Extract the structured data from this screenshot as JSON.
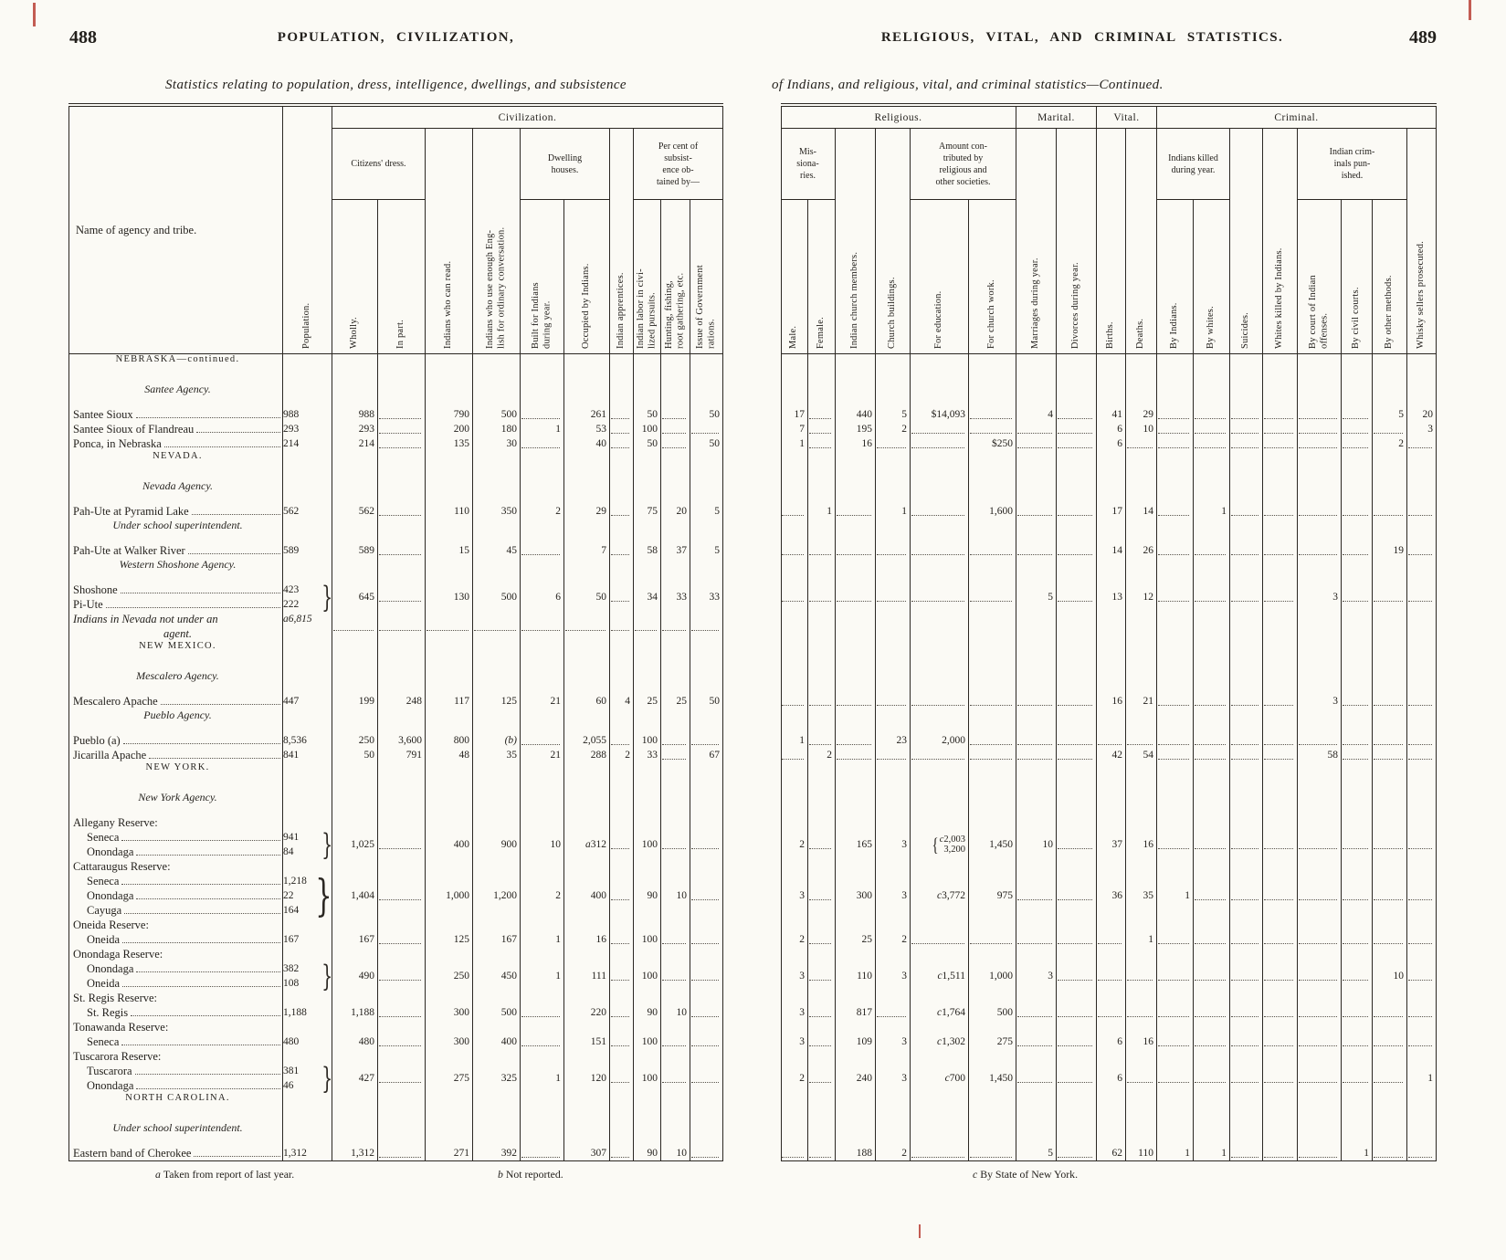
{
  "colors": {
    "ink": "#2b2722",
    "paper": "#fbfaf5",
    "scan_mark": "#b5342a"
  },
  "pages": {
    "left": {
      "number": "488",
      "running_head": "POPULATION, CIVILIZATION,",
      "subtitle": "Statistics relating to population, dress, intelligence, dwellings, and subsistence"
    },
    "right": {
      "number": "489",
      "running_head": "RELIGIOUS, VITAL, AND CRIMINAL STATISTICS.",
      "subtitle": "of Indians, and religious, vital, and criminal statistics—Continued."
    }
  },
  "left_header": {
    "name_col": "Name of agency and tribe.",
    "population": "Population.",
    "civilization": "Civilization.",
    "citizens_dress": "Citizens' dress.",
    "wholly": "Wholly.",
    "in_part": "In part.",
    "read": "Indians who can read.",
    "english": "Indians who use enough Eng-\nlish for ordinary conversation.",
    "dwelling": "Dwelling\nhouses.",
    "built": "Built for Indians\nduring year.",
    "occupied": "Occupied by Indians.",
    "apprentices": "Indian apprentices.",
    "subsistence": "Per cent of\nsubsist-\nence ob-\ntained by—",
    "labor": "Indian labor in civi-\nlized pursuits.",
    "hunting": "Hunting, fishing,\nroot gathering, etc.",
    "rations": "Issue of Government\nrations."
  },
  "right_header": {
    "religious": "Religious.",
    "marital": "Marital.",
    "vital": "Vital.",
    "criminal": "Criminal.",
    "missionaries": "Mis-\nsiona-\nries.",
    "male": "Male.",
    "female": "Female.",
    "members": "Indian church members.",
    "buildings": "Church buildings.",
    "amount": "Amount con-\ntributed by\nreligious and\nother societies.",
    "education": "For education.",
    "church_work": "For church work.",
    "marriages": "Marriages during year.",
    "divorces": "Divorces during year.",
    "births": "Births.",
    "deaths": "Deaths.",
    "killed": "Indians killed\nduring year.",
    "by_indians": "By Indians.",
    "by_whites": "By whites.",
    "suicides": "Suicides.",
    "whites_killed": "Whites killed by Indians.",
    "criminals": "Indian crim-\ninals pun-\nished.",
    "by_court": "By court of Indian\noffenses.",
    "by_civil": "By civil courts.",
    "by_other": "By other methods.",
    "whisky": "Whisky sellers prosecuted."
  },
  "footnotes": {
    "a": {
      "marker": "a",
      "text": "Taken from report of last year."
    },
    "b": {
      "marker": "b",
      "text": "Not reported."
    },
    "c": {
      "marker": "c",
      "text": "By State of New York."
    }
  },
  "rows": [
    {
      "type": "section",
      "text": "NEBRASKA—continued."
    },
    {
      "type": "agency",
      "text": "Santee Agency."
    },
    {
      "type": "data",
      "lines": [
        {
          "name": "Santee Sioux",
          "pop": "988"
        }
      ],
      "left": [
        "988",
        "",
        "790",
        "500",
        "",
        "261",
        "",
        "50",
        "",
        "50"
      ],
      "right": [
        "17",
        "",
        "440",
        "5",
        "$14,093",
        "",
        "4",
        "",
        "41",
        "29",
        "",
        "",
        "",
        "",
        "",
        "",
        "5",
        "20"
      ]
    },
    {
      "type": "data",
      "lines": [
        {
          "name": "Santee Sioux of Flandreau",
          "pop": "293"
        }
      ],
      "left": [
        "293",
        "",
        "200",
        "180",
        "1",
        "53",
        "",
        "100",
        "",
        ""
      ],
      "right": [
        "7",
        "",
        "195",
        "2",
        "",
        "",
        "",
        "",
        "6",
        "10",
        "",
        "",
        "",
        "",
        "",
        "",
        "",
        "3"
      ]
    },
    {
      "type": "data",
      "lines": [
        {
          "name": "Ponca, in Nebraska",
          "pop": "214"
        }
      ],
      "left": [
        "214",
        "",
        "135",
        "30",
        "",
        "40",
        "",
        "50",
        "",
        "50"
      ],
      "right": [
        "1",
        "",
        "16",
        "",
        "",
        "$250",
        "",
        "",
        "6",
        "",
        "",
        "",
        "",
        "",
        "",
        "",
        "2",
        ""
      ]
    },
    {
      "type": "section",
      "text": "NEVADA."
    },
    {
      "type": "agency",
      "text": "Nevada Agency."
    },
    {
      "type": "data",
      "lines": [
        {
          "name": "Pah-Ute at Pyramid Lake",
          "pop": "562"
        }
      ],
      "left": [
        "562",
        "",
        "110",
        "350",
        "2",
        "29",
        "",
        "75",
        "20",
        "5"
      ],
      "right": [
        "",
        "1",
        "",
        "1",
        "",
        "1,600",
        "",
        "",
        "17",
        "14",
        "",
        "1",
        "",
        "",
        "",
        "",
        "",
        ""
      ]
    },
    {
      "type": "agency",
      "text": "Under school superintendent."
    },
    {
      "type": "data",
      "lines": [
        {
          "name": "Pah-Ute at Walker River",
          "pop": "589"
        }
      ],
      "left": [
        "589",
        "",
        "15",
        "45",
        "",
        "7",
        "",
        "58",
        "37",
        "5"
      ],
      "right": [
        "",
        "",
        "",
        "",
        "",
        "",
        "",
        "",
        "14",
        "26",
        "",
        "",
        "",
        "",
        "",
        "",
        "19",
        ""
      ]
    },
    {
      "type": "agency",
      "text": "Western Shoshone Agency."
    },
    {
      "type": "data",
      "brace": 2,
      "lines": [
        {
          "name": "Shoshone",
          "pop": "423"
        },
        {
          "name": "Pi-Ute",
          "pop": "222"
        }
      ],
      "left": [
        "645",
        "",
        "130",
        "500",
        "6",
        "50",
        "",
        "34",
        "33",
        "33"
      ],
      "right": [
        "",
        "",
        "",
        "",
        "",
        "",
        "5",
        "",
        "13",
        "12",
        "",
        "",
        "",
        "",
        "3",
        "",
        "",
        ""
      ]
    },
    {
      "type": "data",
      "italic": true,
      "noleader": true,
      "lines": [
        {
          "name": "Indians in Nevada not under an",
          "pop": "a6,815"
        },
        {
          "name": "agent.",
          "center": true
        }
      ],
      "left": [
        "",
        "",
        "",
        "",
        "",
        "",
        "",
        "",
        "",
        ""
      ],
      "right": [
        null,
        null,
        null,
        null,
        null,
        null,
        null,
        null,
        null,
        null,
        null,
        null,
        null,
        null,
        null,
        null,
        null,
        null
      ]
    },
    {
      "type": "section",
      "text": "NEW MEXICO."
    },
    {
      "type": "agency",
      "text": "Mescalero Agency."
    },
    {
      "type": "data",
      "lines": [
        {
          "name": "Mescalero Apache",
          "pop": "447"
        }
      ],
      "left": [
        "199",
        "248",
        "117",
        "125",
        "21",
        "60",
        "4",
        "25",
        "25",
        "50"
      ],
      "right": [
        "",
        "",
        "",
        "",
        "",
        "",
        "",
        "",
        "16",
        "21",
        "",
        "",
        "",
        "",
        "3",
        "",
        "",
        ""
      ]
    },
    {
      "type": "agency",
      "text": "Pueblo Agency."
    },
    {
      "type": "data",
      "lines": [
        {
          "name": "Pueblo (a)",
          "pop": "8,536"
        }
      ],
      "left": [
        "250",
        "3,600",
        "800",
        "(b)",
        "",
        "2,055",
        "",
        "100",
        "",
        ""
      ],
      "right": [
        "1",
        "",
        "",
        "23",
        "2,000",
        "",
        "",
        "",
        "",
        "",
        "",
        "",
        "",
        "",
        "",
        "",
        "",
        ""
      ]
    },
    {
      "type": "data",
      "lines": [
        {
          "name": "Jicarilla Apache",
          "pop": "841"
        }
      ],
      "left": [
        "50",
        "791",
        "48",
        "35",
        "21",
        "288",
        "2",
        "33",
        "",
        "67"
      ],
      "right": [
        "",
        "2",
        "",
        "",
        "",
        "",
        "",
        "",
        "42",
        "54",
        "",
        "",
        "",
        "",
        "58",
        "",
        "",
        ""
      ]
    },
    {
      "type": "section",
      "text": "NEW YORK."
    },
    {
      "type": "agency",
      "text": "New York Agency."
    },
    {
      "type": "data",
      "label": "Allegany Reserve:",
      "brace": 2,
      "lines": [
        {
          "name": "Seneca",
          "pop": "941",
          "indent": true
        },
        {
          "name": "Onondaga",
          "pop": "84",
          "indent": true
        }
      ],
      "left": [
        "1,025",
        "",
        "400",
        "900",
        "10",
        "a312",
        "",
        "100",
        "",
        ""
      ],
      "right": [
        "2",
        "",
        "165",
        "3",
        "c2,003|3,200",
        "1,450",
        "10",
        "",
        "37",
        "16",
        "",
        "",
        "",
        "",
        "",
        "",
        "",
        ""
      ]
    },
    {
      "type": "data",
      "label": "Cattaraugus Reserve:",
      "brace": 3,
      "lines": [
        {
          "name": "Seneca",
          "pop": "1,218",
          "indent": true
        },
        {
          "name": "Onondaga",
          "pop": "22",
          "indent": true
        },
        {
          "name": "Cayuga",
          "pop": "164",
          "indent": true
        }
      ],
      "left": [
        "1,404",
        "",
        "1,000",
        "1,200",
        "2",
        "400",
        "",
        "90",
        "10",
        ""
      ],
      "right": [
        "3",
        "",
        "300",
        "3",
        "c3,772",
        "975",
        "",
        "",
        "36",
        "35",
        "1",
        "",
        "",
        "",
        "",
        "",
        "",
        ""
      ]
    },
    {
      "type": "data",
      "label": "Oneida Reserve:",
      "lines": [
        {
          "name": "Oneida",
          "pop": "167",
          "indent": true
        }
      ],
      "left": [
        "167",
        "",
        "125",
        "167",
        "1",
        "16",
        "",
        "100",
        "",
        ""
      ],
      "right": [
        "2",
        "",
        "25",
        "2",
        "",
        "",
        "",
        "",
        "",
        "1",
        "",
        "",
        "",
        "",
        "",
        "",
        "",
        ""
      ]
    },
    {
      "type": "data",
      "label": "Onondaga Reserve:",
      "brace": 2,
      "lines": [
        {
          "name": "Onondaga",
          "pop": "382",
          "indent": true
        },
        {
          "name": "Oneida",
          "pop": "108",
          "indent": true
        }
      ],
      "left": [
        "490",
        "",
        "250",
        "450",
        "1",
        "111",
        "",
        "100",
        "",
        ""
      ],
      "right": [
        "3",
        "",
        "110",
        "3",
        "c1,511",
        "1,000",
        "3",
        "",
        "",
        "",
        "",
        "",
        "",
        "",
        "",
        "",
        "10",
        ""
      ]
    },
    {
      "type": "data",
      "label": "St. Regis Reserve:",
      "lines": [
        {
          "name": "St. Regis",
          "pop": "1,188",
          "indent": true
        }
      ],
      "left": [
        "1,188",
        "",
        "300",
        "500",
        "",
        "220",
        "",
        "90",
        "10",
        ""
      ],
      "right": [
        "3",
        "",
        "817",
        "",
        "c1,764",
        "500",
        "",
        "",
        "",
        "",
        "",
        "",
        "",
        "",
        "",
        "",
        "",
        ""
      ]
    },
    {
      "type": "data",
      "label": "Tonawanda Reserve:",
      "lines": [
        {
          "name": "Seneca",
          "pop": "480",
          "indent": true
        }
      ],
      "left": [
        "480",
        "",
        "300",
        "400",
        "",
        "151",
        "",
        "100",
        "",
        ""
      ],
      "right": [
        "3",
        "",
        "109",
        "3",
        "c1,302",
        "275",
        "",
        "",
        "6",
        "16",
        "",
        "",
        "",
        "",
        "",
        "",
        "",
        ""
      ]
    },
    {
      "type": "data",
      "label": "Tuscarora Reserve:",
      "brace": 2,
      "lines": [
        {
          "name": "Tuscarora",
          "pop": "381",
          "indent": true
        },
        {
          "name": "Onondaga",
          "pop": "46",
          "indent": true
        }
      ],
      "left": [
        "427",
        "",
        "275",
        "325",
        "1",
        "120",
        "",
        "100",
        "",
        ""
      ],
      "right": [
        "2",
        "",
        "240",
        "3",
        "c700",
        "1,450",
        "",
        "",
        "6",
        "",
        "",
        "",
        "",
        "",
        "",
        "",
        "",
        "1"
      ]
    },
    {
      "type": "section",
      "text": "NORTH CAROLINA."
    },
    {
      "type": "agency",
      "text": "Under school superintendent."
    },
    {
      "type": "data",
      "lines": [
        {
          "name": "Eastern band of Cherokee",
          "pop": "1,312"
        }
      ],
      "left": [
        "1,312",
        "",
        "271",
        "392",
        "",
        "307",
        "",
        "90",
        "10",
        ""
      ],
      "right": [
        "",
        "",
        "188",
        "2",
        "",
        "",
        "5",
        "",
        "62",
        "110",
        "1",
        "1",
        "",
        "",
        "",
        "1",
        "",
        ""
      ]
    }
  ]
}
